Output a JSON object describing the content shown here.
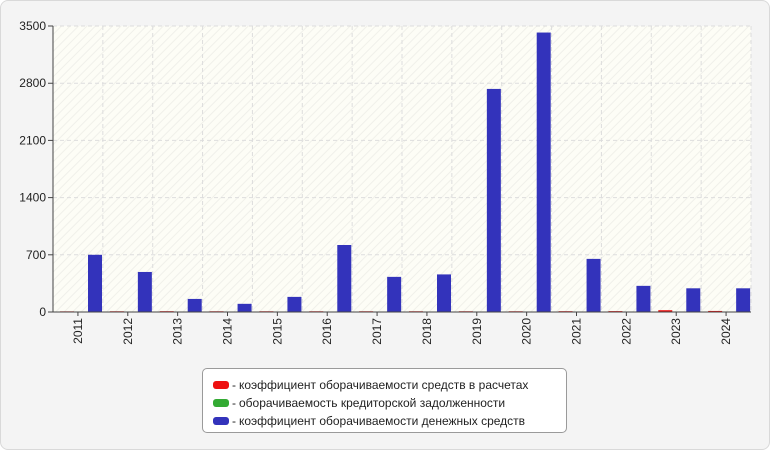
{
  "chart_data": {
    "type": "bar",
    "categories": [
      "2011",
      "2012",
      "2013",
      "2014",
      "2015",
      "2016",
      "2017",
      "2018",
      "2019",
      "2020",
      "2021",
      "2022",
      "2023",
      "2024"
    ],
    "series": [
      {
        "name": "коэффициент оборачиваемости средств в расчетах",
        "color": "#ee1111",
        "values": [
          8,
          9,
          10,
          9,
          9,
          9,
          9,
          9,
          9,
          9,
          10,
          11,
          22,
          13
        ]
      },
      {
        "name": "оборачиваемость кредиторской задолженности",
        "color": "#33aa33",
        "values": [
          4,
          4,
          4,
          4,
          4,
          4,
          4,
          4,
          4,
          4,
          4,
          4,
          6,
          4
        ]
      },
      {
        "name": "коэффициент оборачиваемости денежных средств",
        "color": "#3333bb",
        "values": [
          700,
          490,
          160,
          100,
          185,
          820,
          430,
          460,
          2730,
          3420,
          650,
          320,
          290,
          290
        ]
      }
    ],
    "ylim": [
      0,
      3500
    ],
    "yticks": [
      0,
      700,
      1400,
      2100,
      2800,
      3500
    ],
    "grid": true,
    "legend_position": "bottom",
    "title": "",
    "xlabel": "",
    "ylabel": "",
    "legend_prefix": "- "
  }
}
